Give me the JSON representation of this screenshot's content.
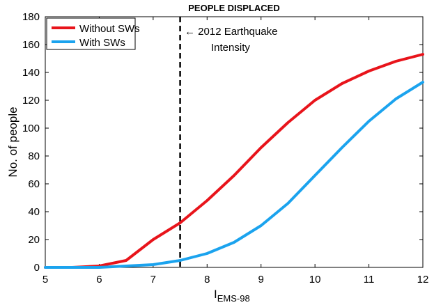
{
  "chart_data": {
    "type": "line",
    "title": "PEOPLE DISPLACED",
    "xlabel_main": "I",
    "xlabel_sub": "EMS-98",
    "ylabel": "No. of people",
    "xlim": [
      5,
      12
    ],
    "ylim": [
      0,
      180
    ],
    "x_ticks": [
      5,
      6,
      7,
      8,
      9,
      10,
      11,
      12
    ],
    "y_ticks": [
      0,
      20,
      40,
      60,
      80,
      100,
      120,
      140,
      160,
      180
    ],
    "grid": false,
    "legend_position": "top-left",
    "x": [
      5,
      5.5,
      6,
      6.5,
      7,
      7.5,
      8,
      8.5,
      9,
      9.5,
      10,
      10.5,
      11,
      11.5,
      12
    ],
    "series": [
      {
        "name": "Without SWs",
        "color": "#e8141b",
        "values": [
          0,
          0,
          1,
          5,
          20,
          32,
          48,
          66,
          86,
          104,
          120,
          132,
          141,
          148,
          153
        ]
      },
      {
        "name": "With SWs",
        "color": "#1ba3ee",
        "values": [
          0,
          0,
          0,
          1,
          2,
          5,
          10,
          18,
          30,
          46,
          66,
          86,
          105,
          121,
          133
        ]
      }
    ],
    "vline": {
      "x": 7.5,
      "style": "dashed",
      "color": "#000000",
      "label_line1": "← 2012 Earthquake",
      "label_line2": "Intensity"
    }
  }
}
